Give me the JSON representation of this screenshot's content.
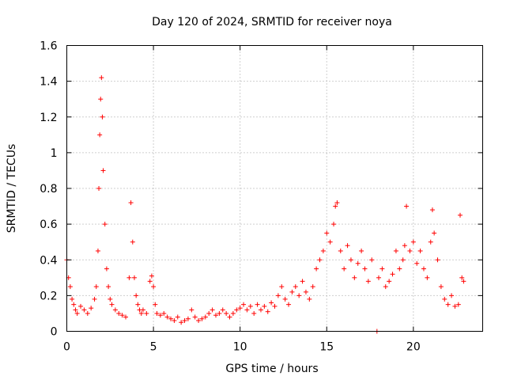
{
  "chart_data": {
    "type": "scatter",
    "title": "Day 120 of 2024, SRMTID for receiver noya",
    "xlabel": "GPS time / hours",
    "ylabel": "SRMTID / TECUs",
    "xlim": [
      0,
      24
    ],
    "ylim": [
      0,
      1.6
    ],
    "xticks": [
      "0",
      "5",
      "10",
      "15",
      "20"
    ],
    "xtick_values": [
      0,
      5,
      10,
      15,
      20
    ],
    "yticks": [
      "0",
      "0.2",
      "0.4",
      "0.6",
      "0.8",
      "1",
      "1.2",
      "1.4",
      "1.6"
    ],
    "ytick_values": [
      0,
      0.2,
      0.4,
      0.6,
      0.8,
      1.0,
      1.2,
      1.4,
      1.6
    ],
    "grid": true,
    "marker": "+",
    "marker_color": "#ff0000",
    "series": [
      {
        "name": "SRMTID",
        "x": [
          0.0,
          0.1,
          0.2,
          0.3,
          0.4,
          0.5,
          0.6,
          0.8,
          1.0,
          1.2,
          1.4,
          1.6,
          1.7,
          1.8,
          1.85,
          1.9,
          1.95,
          2.0,
          2.05,
          2.1,
          2.2,
          2.3,
          2.4,
          2.5,
          2.6,
          2.8,
          3.0,
          3.2,
          3.4,
          3.6,
          3.7,
          3.8,
          3.9,
          4.0,
          4.1,
          4.2,
          4.3,
          4.4,
          4.6,
          4.8,
          4.9,
          5.0,
          5.1,
          5.2,
          5.4,
          5.6,
          5.8,
          6.0,
          6.2,
          6.4,
          6.6,
          6.8,
          7.0,
          7.2,
          7.4,
          7.6,
          7.8,
          8.0,
          8.2,
          8.4,
          8.6,
          8.8,
          9.0,
          9.2,
          9.4,
          9.6,
          9.8,
          10.0,
          10.2,
          10.4,
          10.6,
          10.8,
          11.0,
          11.2,
          11.4,
          11.6,
          11.8,
          12.0,
          12.2,
          12.4,
          12.6,
          12.8,
          13.0,
          13.2,
          13.4,
          13.6,
          13.8,
          14.0,
          14.2,
          14.4,
          14.6,
          14.8,
          15.0,
          15.2,
          15.4,
          15.5,
          15.6,
          15.8,
          16.0,
          16.2,
          16.4,
          16.6,
          16.8,
          17.0,
          17.2,
          17.4,
          17.6,
          17.9,
          18.0,
          18.2,
          18.4,
          18.6,
          18.8,
          19.0,
          19.2,
          19.4,
          19.5,
          19.6,
          19.8,
          20.0,
          20.2,
          20.4,
          20.6,
          20.8,
          21.0,
          21.1,
          21.2,
          21.4,
          21.6,
          21.8,
          22.0,
          22.2,
          22.4,
          22.6,
          22.7,
          22.8,
          22.9
        ],
        "y": [
          0.4,
          0.3,
          0.25,
          0.18,
          0.15,
          0.12,
          0.1,
          0.14,
          0.12,
          0.1,
          0.13,
          0.18,
          0.25,
          0.45,
          0.8,
          1.1,
          1.3,
          1.42,
          1.2,
          0.9,
          0.6,
          0.35,
          0.25,
          0.18,
          0.15,
          0.12,
          0.1,
          0.09,
          0.08,
          0.3,
          0.72,
          0.5,
          0.3,
          0.2,
          0.15,
          0.12,
          0.1,
          0.12,
          0.1,
          0.28,
          0.31,
          0.25,
          0.15,
          0.1,
          0.09,
          0.1,
          0.08,
          0.07,
          0.06,
          0.08,
          0.05,
          0.06,
          0.07,
          0.12,
          0.08,
          0.06,
          0.07,
          0.08,
          0.1,
          0.12,
          0.09,
          0.1,
          0.12,
          0.1,
          0.08,
          0.1,
          0.12,
          0.13,
          0.15,
          0.12,
          0.14,
          0.1,
          0.15,
          0.12,
          0.14,
          0.11,
          0.16,
          0.14,
          0.2,
          0.25,
          0.18,
          0.15,
          0.22,
          0.25,
          0.2,
          0.28,
          0.22,
          0.18,
          0.25,
          0.35,
          0.4,
          0.45,
          0.55,
          0.5,
          0.6,
          0.7,
          0.72,
          0.45,
          0.35,
          0.48,
          0.4,
          0.3,
          0.38,
          0.45,
          0.35,
          0.28,
          0.4,
          0.0,
          0.3,
          0.35,
          0.25,
          0.28,
          0.32,
          0.45,
          0.35,
          0.4,
          0.48,
          0.7,
          0.45,
          0.5,
          0.38,
          0.45,
          0.35,
          0.3,
          0.5,
          0.68,
          0.55,
          0.4,
          0.25,
          0.18,
          0.15,
          0.2,
          0.14,
          0.15,
          0.65,
          0.3,
          0.28
        ]
      }
    ]
  }
}
